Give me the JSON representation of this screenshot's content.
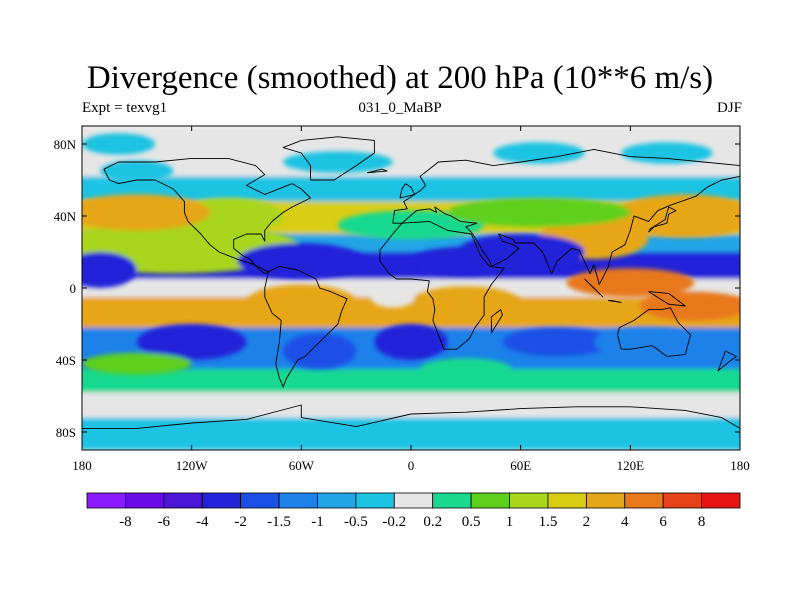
{
  "chart_data": {
    "type": "heatmap",
    "title": "Divergence (smoothed) at 200 hPa (10**6 m/s)",
    "left_string": "Expt = texvg1",
    "center_string": "031_0_MaBP",
    "right_string": "DJF",
    "xlim": [
      -180,
      180
    ],
    "ylim": [
      -90,
      90
    ],
    "xticks": [
      {
        "value": -180,
        "label": "180"
      },
      {
        "value": -120,
        "label": "120W"
      },
      {
        "value": -60,
        "label": "60W"
      },
      {
        "value": 0,
        "label": "0"
      },
      {
        "value": 60,
        "label": "60E"
      },
      {
        "value": 120,
        "label": "120E"
      },
      {
        "value": 180,
        "label": "180"
      }
    ],
    "yticks": [
      {
        "value": 80,
        "label": "80N"
      },
      {
        "value": 40,
        "label": "40N"
      },
      {
        "value": 0,
        "label": "0"
      },
      {
        "value": -40,
        "label": "40S"
      },
      {
        "value": -80,
        "label": "80S"
      }
    ],
    "colorbar": {
      "colors": [
        "#8c1aff",
        "#6a0ae6",
        "#4b14d9",
        "#2323d9",
        "#1a50e6",
        "#1c82ea",
        "#22a5e6",
        "#1cc3e3",
        "#e6e6e6",
        "#19d98f",
        "#5fd01a",
        "#a8d61a",
        "#d9cd14",
        "#e6a619",
        "#e8781a",
        "#e64219",
        "#e61414"
      ],
      "labels": [
        "-8",
        "-6",
        "-4",
        "-2",
        "-1.5",
        "-1",
        "-0.5",
        "-0.2",
        "0.2",
        "0.5",
        "1",
        "1.5",
        "2",
        "4",
        "6",
        "8"
      ]
    },
    "bands": [
      {
        "lat_min": 62,
        "lat_max": 90,
        "value": 0.0
      },
      {
        "lat_min": 48,
        "lat_max": 62,
        "value": -0.5
      },
      {
        "lat_min": 30,
        "lat_max": 48,
        "value": 1.5
      },
      {
        "lat_min": 20,
        "lat_max": 30,
        "value": -1.0
      },
      {
        "lat_min": 5,
        "lat_max": 20,
        "value": -3.0
      },
      {
        "lat_min": -5,
        "lat_max": 5,
        "value": 0.0
      },
      {
        "lat_min": -22,
        "lat_max": -5,
        "value": 2.5
      },
      {
        "lat_min": -45,
        "lat_max": -22,
        "value": -1.5
      },
      {
        "lat_min": -58,
        "lat_max": -45,
        "value": 0.3
      },
      {
        "lat_min": -72,
        "lat_max": -58,
        "value": 0.0
      },
      {
        "lat_min": -90,
        "lat_max": -72,
        "value": -0.3
      }
    ],
    "features": [
      {
        "lon": -130,
        "lat": 22,
        "dlon": 70,
        "dlat": 14,
        "value": 1.0
      },
      {
        "lon": 0,
        "lat": 35,
        "dlon": 40,
        "dlat": 8,
        "value": 0.3
      },
      {
        "lon": 100,
        "lat": 28,
        "dlon": 30,
        "dlat": 12,
        "value": 2.0
      },
      {
        "lon": 150,
        "lat": 40,
        "dlon": 40,
        "dlat": 12,
        "value": 2.5
      },
      {
        "lon": 70,
        "lat": 42,
        "dlon": 50,
        "dlat": 8,
        "value": 0.8
      },
      {
        "lon": -100,
        "lat": 40,
        "dlon": 30,
        "dlat": 10,
        "value": 1.0
      },
      {
        "lon": -150,
        "lat": 42,
        "dlon": 40,
        "dlat": 10,
        "value": 2.5
      },
      {
        "lon": -60,
        "lat": 15,
        "dlon": 35,
        "dlat": 10,
        "value": -4.0
      },
      {
        "lon": 30,
        "lat": 15,
        "dlon": 30,
        "dlat": 8,
        "value": -4.0
      },
      {
        "lon": -170,
        "lat": 10,
        "dlon": 20,
        "dlat": 10,
        "value": -3.0
      },
      {
        "lon": 60,
        "lat": 20,
        "dlon": 35,
        "dlat": 10,
        "value": -3.0
      },
      {
        "lon": 120,
        "lat": 3,
        "dlon": 35,
        "dlat": 8,
        "value": 5.0
      },
      {
        "lon": 155,
        "lat": -10,
        "dlon": 30,
        "dlat": 8,
        "value": 4.0
      },
      {
        "lon": -60,
        "lat": -8,
        "dlon": 30,
        "dlat": 10,
        "value": 3.0
      },
      {
        "lon": 30,
        "lat": -8,
        "dlon": 30,
        "dlat": 9,
        "value": 3.0
      },
      {
        "lon": -10,
        "lat": -5,
        "dlon": 12,
        "dlat": 6,
        "value": 0.0
      },
      {
        "lon": -120,
        "lat": -30,
        "dlon": 30,
        "dlat": 10,
        "value": -2.5
      },
      {
        "lon": -50,
        "lat": -35,
        "dlon": 20,
        "dlat": 10,
        "value": -2.0
      },
      {
        "lon": 0,
        "lat": -30,
        "dlon": 20,
        "dlat": 10,
        "value": -3.0
      },
      {
        "lon": 80,
        "lat": -30,
        "dlon": 30,
        "dlat": 8,
        "value": -2.0
      },
      {
        "lon": 130,
        "lat": -30,
        "dlon": 30,
        "dlat": 8,
        "value": -1.5
      },
      {
        "lon": 30,
        "lat": -45,
        "dlon": 25,
        "dlat": 6,
        "value": 0.4
      },
      {
        "lon": -150,
        "lat": -42,
        "dlon": 30,
        "dlat": 6,
        "value": 0.8
      },
      {
        "lon": -160,
        "lat": 80,
        "dlon": 20,
        "dlat": 6,
        "value": -0.4
      },
      {
        "lon": -150,
        "lat": 65,
        "dlon": 20,
        "dlat": 6,
        "value": -0.5
      },
      {
        "lon": 70,
        "lat": 75,
        "dlon": 25,
        "dlat": 6,
        "value": -0.4
      },
      {
        "lon": 140,
        "lat": 75,
        "dlon": 25,
        "dlat": 6,
        "value": -0.4
      },
      {
        "lon": -40,
        "lat": 70,
        "dlon": 30,
        "dlat": 6,
        "value": -0.3
      }
    ],
    "coastlines": [
      [
        [
          -168,
          66
        ],
        [
          -160,
          70
        ],
        [
          -140,
          70
        ],
        [
          -120,
          72
        ],
        [
          -100,
          72
        ],
        [
          -85,
          68
        ],
        [
          -80,
          63
        ],
        [
          -90,
          57
        ],
        [
          -80,
          52
        ],
        [
          -65,
          58
        ],
        [
          -60,
          55
        ],
        [
          -55,
          50
        ],
        [
          -65,
          45
        ],
        [
          -70,
          42
        ],
        [
          -76,
          37
        ],
        [
          -80,
          32
        ],
        [
          -80,
          26
        ],
        [
          -82,
          30
        ],
        [
          -90,
          30
        ],
        [
          -97,
          27
        ],
        [
          -97,
          22
        ],
        [
          -92,
          18
        ],
        [
          -88,
          16
        ],
        [
          -84,
          11
        ],
        [
          -80,
          8
        ],
        [
          -78,
          9
        ],
        [
          -86,
          13
        ],
        [
          -95,
          16
        ],
        [
          -105,
          20
        ],
        [
          -110,
          24
        ],
        [
          -115,
          30
        ],
        [
          -122,
          37
        ],
        [
          -124,
          42
        ],
        [
          -124,
          48
        ],
        [
          -130,
          55
        ],
        [
          -140,
          60
        ],
        [
          -150,
          60
        ],
        [
          -160,
          58
        ],
        [
          -165,
          60
        ],
        [
          -168,
          66
        ]
      ],
      [
        [
          -78,
          9
        ],
        [
          -72,
          12
        ],
        [
          -62,
          10
        ],
        [
          -52,
          5
        ],
        [
          -50,
          0
        ],
        [
          -44,
          -2
        ],
        [
          -35,
          -6
        ],
        [
          -38,
          -13
        ],
        [
          -40,
          -20
        ],
        [
          -48,
          -28
        ],
        [
          -54,
          -34
        ],
        [
          -58,
          -38
        ],
        [
          -62,
          -40
        ],
        [
          -65,
          -45
        ],
        [
          -68,
          -50
        ],
        [
          -70,
          -55
        ],
        [
          -72,
          -50
        ],
        [
          -74,
          -42
        ],
        [
          -72,
          -30
        ],
        [
          -71,
          -18
        ],
        [
          -76,
          -14
        ],
        [
          -80,
          -5
        ],
        [
          -80,
          0
        ],
        [
          -78,
          9
        ]
      ],
      [
        [
          -55,
          60
        ],
        [
          -42,
          60
        ],
        [
          -30,
          68
        ],
        [
          -20,
          75
        ],
        [
          -20,
          82
        ],
        [
          -40,
          84
        ],
        [
          -60,
          82
        ],
        [
          -70,
          78
        ],
        [
          -60,
          75
        ],
        [
          -55,
          68
        ],
        [
          -55,
          60
        ]
      ],
      [
        [
          -10,
          36
        ],
        [
          -9,
          43
        ],
        [
          -2,
          44
        ],
        [
          -4,
          48
        ],
        [
          5,
          54
        ],
        [
          8,
          57
        ],
        [
          5,
          62
        ],
        [
          15,
          70
        ],
        [
          30,
          71
        ],
        [
          45,
          68
        ],
        [
          60,
          70
        ],
        [
          80,
          73
        ],
        [
          100,
          77
        ],
        [
          120,
          73
        ],
        [
          140,
          72
        ],
        [
          160,
          70
        ],
        [
          180,
          68
        ],
        [
          180,
          62
        ],
        [
          170,
          60
        ],
        [
          162,
          56
        ],
        [
          156,
          51
        ],
        [
          142,
          46
        ],
        [
          135,
          43
        ],
        [
          130,
          37
        ],
        [
          122,
          40
        ],
        [
          120,
          32
        ],
        [
          117,
          24
        ],
        [
          110,
          20
        ],
        [
          108,
          12
        ],
        [
          103,
          2
        ],
        [
          100,
          13
        ],
        [
          98,
          8
        ],
        [
          92,
          21
        ],
        [
          88,
          22
        ],
        [
          80,
          15
        ],
        [
          77,
          8
        ],
        [
          72,
          20
        ],
        [
          67,
          25
        ],
        [
          57,
          25
        ],
        [
          56,
          27
        ],
        [
          48,
          30
        ],
        [
          50,
          26
        ],
        [
          56,
          24
        ],
        [
          59,
          22
        ],
        [
          52,
          16
        ],
        [
          44,
          12
        ],
        [
          43,
          15
        ],
        [
          39,
          21
        ],
        [
          35,
          28
        ],
        [
          33,
          31
        ],
        [
          30,
          34
        ],
        [
          36,
          36
        ],
        [
          27,
          37
        ],
        [
          22,
          40
        ],
        [
          19,
          41
        ],
        [
          13,
          45
        ],
        [
          14,
          42
        ],
        [
          10,
          44
        ],
        [
          3,
          43
        ],
        [
          -5,
          36
        ],
        [
          -10,
          36
        ]
      ],
      [
        [
          -17,
          21
        ],
        [
          -17,
          15
        ],
        [
          -12,
          8
        ],
        [
          -8,
          5
        ],
        [
          0,
          5
        ],
        [
          10,
          4
        ],
        [
          9,
          -2
        ],
        [
          12,
          -6
        ],
        [
          13,
          -12
        ],
        [
          12,
          -18
        ],
        [
          15,
          -26
        ],
        [
          18,
          -34
        ],
        [
          25,
          -34
        ],
        [
          32,
          -28
        ],
        [
          35,
          -22
        ],
        [
          40,
          -15
        ],
        [
          40,
          -5
        ],
        [
          44,
          2
        ],
        [
          51,
          11
        ],
        [
          43,
          12
        ],
        [
          38,
          18
        ],
        [
          33,
          30
        ],
        [
          20,
          32
        ],
        [
          10,
          37
        ],
        [
          -5,
          36
        ],
        [
          -10,
          30
        ],
        [
          -17,
          21
        ]
      ],
      [
        [
          44,
          -25
        ],
        [
          50,
          -15
        ],
        [
          49,
          -12
        ],
        [
          44,
          -16
        ],
        [
          44,
          -25
        ]
      ],
      [
        [
          114,
          -22
        ],
        [
          122,
          -18
        ],
        [
          130,
          -12
        ],
        [
          137,
          -12
        ],
        [
          142,
          -11
        ],
        [
          146,
          -19
        ],
        [
          153,
          -26
        ],
        [
          150,
          -37
        ],
        [
          140,
          -38
        ],
        [
          132,
          -32
        ],
        [
          120,
          -34
        ],
        [
          115,
          -34
        ],
        [
          113,
          -26
        ],
        [
          114,
          -22
        ]
      ],
      [
        [
          -180,
          -78
        ],
        [
          -150,
          -78
        ],
        [
          -120,
          -75
        ],
        [
          -90,
          -73
        ],
        [
          -60,
          -65
        ],
        [
          -60,
          -72
        ],
        [
          -30,
          -77
        ],
        [
          0,
          -70
        ],
        [
          30,
          -69
        ],
        [
          60,
          -67
        ],
        [
          90,
          -66
        ],
        [
          120,
          -66
        ],
        [
          150,
          -68
        ],
        [
          170,
          -72
        ],
        [
          180,
          -78
        ]
      ],
      [
        [
          130,
          31
        ],
        [
          133,
          34
        ],
        [
          140,
          36
        ],
        [
          141,
          41
        ],
        [
          145,
          43
        ],
        [
          141,
          45
        ],
        [
          139,
          38
        ],
        [
          131,
          33
        ],
        [
          130,
          31
        ]
      ],
      [
        [
          95,
          5
        ],
        [
          105,
          -5
        ],
        [
          100,
          0
        ],
        [
          95,
          5
        ]
      ],
      [
        [
          130,
          -2
        ],
        [
          141,
          -3
        ],
        [
          150,
          -10
        ],
        [
          141,
          -9
        ],
        [
          130,
          -2
        ]
      ],
      [
        [
          -6,
          50
        ],
        [
          -5,
          55
        ],
        [
          -3,
          58
        ],
        [
          0,
          56
        ],
        [
          2,
          52
        ],
        [
          -6,
          50
        ]
      ],
      [
        [
          110,
          -7
        ],
        [
          115,
          -8
        ],
        [
          108,
          -7
        ],
        [
          110,
          -7
        ]
      ],
      [
        [
          172,
          -35
        ],
        [
          178,
          -38
        ],
        [
          174,
          -41
        ],
        [
          168,
          -46
        ],
        [
          172,
          -35
        ]
      ],
      [
        [
          -24,
          64
        ],
        [
          -13,
          65
        ],
        [
          -16,
          66
        ],
        [
          -24,
          64
        ]
      ]
    ]
  }
}
